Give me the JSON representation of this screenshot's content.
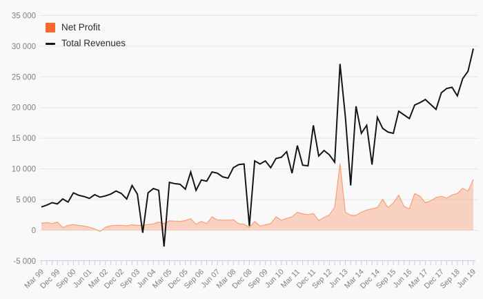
{
  "chart_data": {
    "type": "area+line",
    "title": "",
    "x_ticks_total": 82,
    "x_label_every": 3,
    "x_tick_labels": [
      "Mar 99",
      "Dec 99",
      "Sep 00",
      "Jun 01",
      "Mar 02",
      "Dec 02",
      "Sep 03",
      "Jun 04",
      "Mar 05",
      "Dec 05",
      "Sep 06",
      "Jun 07",
      "Mar 08",
      "Dec 08",
      "Sep 09",
      "Jun 10",
      "Mar 11",
      "Dec 11",
      "Sep 12",
      "Jun 13",
      "Mar 14",
      "Dec 14",
      "Sep 15",
      "Jun 16",
      "Mar 17",
      "Dec 17",
      "Sep 18",
      "Jun 19"
    ],
    "ylim": [
      -5000,
      35000
    ],
    "y_tick_step": 5000,
    "y_tick_labels": [
      "-5 000",
      "0",
      "5 000",
      "10 000",
      "15 000",
      "20 000",
      "25 000",
      "30 000",
      "35 000"
    ],
    "grid": "horizontal",
    "legend_position": "top-left",
    "series": [
      {
        "name": "Net Profit",
        "type": "area",
        "color": "#f8692a",
        "fill_opacity": 0.27,
        "edge_opacity": 0.55,
        "values": [
          1150,
          1250,
          1100,
          1350,
          450,
          800,
          950,
          800,
          700,
          500,
          250,
          -200,
          500,
          750,
          800,
          800,
          750,
          900,
          800,
          800,
          950,
          1050,
          1350,
          1100,
          1550,
          1500,
          1450,
          1600,
          1900,
          1000,
          1450,
          1100,
          2200,
          1700,
          1650,
          1650,
          1700,
          1100,
          1000,
          500,
          1450,
          700,
          900,
          1100,
          2200,
          1650,
          1950,
          2200,
          2950,
          2700,
          2550,
          2750,
          1600,
          2100,
          2500,
          3800,
          10900,
          2950,
          2450,
          2450,
          2950,
          3300,
          3500,
          3700,
          5050,
          3700,
          4450,
          5750,
          3900,
          3500,
          6000,
          5550,
          4500,
          4800,
          5350,
          5550,
          5250,
          5750,
          6000,
          6850,
          6400,
          8300
        ]
      },
      {
        "name": "Total Revenues",
        "type": "line",
        "color": "#141414",
        "line_width": 2,
        "values": [
          3800,
          4100,
          4500,
          4300,
          5100,
          4600,
          6100,
          5700,
          5500,
          5200,
          5800,
          5400,
          5600,
          5900,
          6400,
          6000,
          5100,
          7300,
          5900,
          -400,
          6100,
          6800,
          6500,
          -2650,
          7800,
          7600,
          7500,
          6700,
          9500,
          6500,
          8200,
          8000,
          9500,
          9300,
          8700,
          8500,
          10200,
          10700,
          10800,
          700,
          11300,
          10800,
          11300,
          10200,
          11700,
          11900,
          12800,
          9300,
          13800,
          10600,
          10500,
          17100,
          12100,
          13000,
          12300,
          11100,
          27100,
          18500,
          7300,
          20200,
          15800,
          17100,
          10700,
          18400,
          16600,
          16000,
          15800,
          19400,
          18800,
          18200,
          20400,
          20800,
          21300,
          20500,
          19700,
          22400,
          23100,
          23300,
          21900,
          24700,
          25900,
          29600
        ]
      }
    ]
  },
  "colors": {
    "background": "#f9f9f9",
    "gridline": "#e6e6e6",
    "axis_text": "#7f7f7f",
    "tick_marks": "#c7cce5",
    "net_profit": "#f8692a",
    "total_revenues": "#141414"
  }
}
